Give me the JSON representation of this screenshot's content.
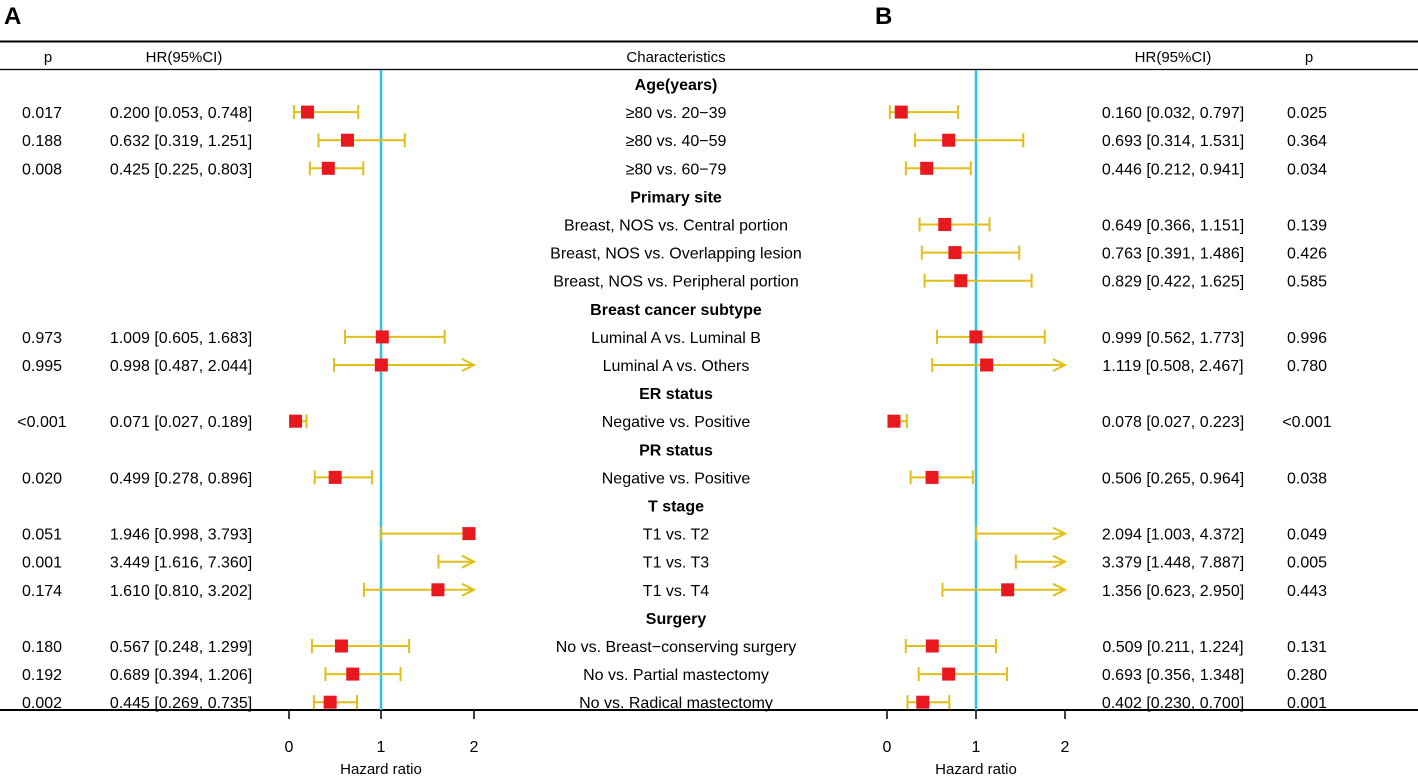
{
  "chart_data": {
    "type": "forest",
    "panels": [
      {
        "label": "A",
        "p_header": "p",
        "hr_header": "HR(95%CI)",
        "xlabel": "Hazard ratio",
        "xticks": [
          "0",
          "1",
          "2"
        ],
        "xlim": [
          0,
          2
        ],
        "reference": 1
      },
      {
        "label": "B",
        "p_header": "p",
        "hr_header": "HR(95%CI)",
        "xlabel": "Hazard ratio",
        "xticks": [
          "0",
          "1",
          "2"
        ],
        "xlim": [
          0,
          2
        ],
        "reference": 1
      }
    ],
    "characteristics_header": "Characteristics",
    "rows": [
      {
        "kind": "group",
        "label": "Age(years)"
      },
      {
        "kind": "item",
        "label": "≥80 vs. 20−39",
        "a": {
          "p": "0.017",
          "hr_text": "0.200 [0.053, 0.748]",
          "hr": 0.2,
          "lo": 0.053,
          "hi": 0.748
        },
        "b": {
          "p": "0.025",
          "hr_text": "0.160 [0.032, 0.797]",
          "hr": 0.16,
          "lo": 0.032,
          "hi": 0.797
        }
      },
      {
        "kind": "item",
        "label": "≥80 vs. 40−59",
        "a": {
          "p": "0.188",
          "hr_text": "0.632 [0.319, 1.251]",
          "hr": 0.632,
          "lo": 0.319,
          "hi": 1.251
        },
        "b": {
          "p": "0.364",
          "hr_text": "0.693 [0.314, 1.531]",
          "hr": 0.693,
          "lo": 0.314,
          "hi": 1.531
        }
      },
      {
        "kind": "item",
        "label": "≥80 vs. 60−79",
        "a": {
          "p": "0.008",
          "hr_text": "0.425 [0.225, 0.803]",
          "hr": 0.425,
          "lo": 0.225,
          "hi": 0.803
        },
        "b": {
          "p": "0.034",
          "hr_text": "0.446 [0.212, 0.941]",
          "hr": 0.446,
          "lo": 0.212,
          "hi": 0.941
        }
      },
      {
        "kind": "group",
        "label": "Primary site"
      },
      {
        "kind": "item",
        "label": "Breast, NOS vs. Central portion",
        "a": null,
        "b": {
          "p": "0.139",
          "hr_text": "0.649 [0.366, 1.151]",
          "hr": 0.649,
          "lo": 0.366,
          "hi": 1.151
        }
      },
      {
        "kind": "item",
        "label": "Breast, NOS vs. Overlapping lesion",
        "a": null,
        "b": {
          "p": "0.426",
          "hr_text": "0.763 [0.391, 1.486]",
          "hr": 0.763,
          "lo": 0.391,
          "hi": 1.486
        }
      },
      {
        "kind": "item",
        "label": "Breast, NOS vs. Peripheral portion",
        "a": null,
        "b": {
          "p": "0.585",
          "hr_text": "0.829 [0.422, 1.625]",
          "hr": 0.829,
          "lo": 0.422,
          "hi": 1.625
        }
      },
      {
        "kind": "group",
        "label": "Breast cancer subtype"
      },
      {
        "kind": "item",
        "label": "Luminal A vs. Luminal B",
        "a": {
          "p": "0.973",
          "hr_text": "1.009 [0.605, 1.683]",
          "hr": 1.009,
          "lo": 0.605,
          "hi": 1.683
        },
        "b": {
          "p": "0.996",
          "hr_text": "0.999 [0.562, 1.773]",
          "hr": 0.999,
          "lo": 0.562,
          "hi": 1.773
        }
      },
      {
        "kind": "item",
        "label": "Luminal A vs. Others",
        "a": {
          "p": "0.995",
          "hr_text": "0.998 [0.487, 2.044]",
          "hr": 0.998,
          "lo": 0.487,
          "hi": 2.044
        },
        "b": {
          "p": "0.780",
          "hr_text": "1.119 [0.508, 2.467]",
          "hr": 1.119,
          "lo": 0.508,
          "hi": 2.467
        }
      },
      {
        "kind": "group",
        "label": "ER status"
      },
      {
        "kind": "item",
        "label": "Negative vs. Positive",
        "a": {
          "p": "<0.001",
          "hr_text": "0.071 [0.027, 0.189]",
          "hr": 0.071,
          "lo": 0.027,
          "hi": 0.189
        },
        "b": {
          "p": "<0.001",
          "hr_text": "0.078 [0.027, 0.223]",
          "hr": 0.078,
          "lo": 0.027,
          "hi": 0.223
        }
      },
      {
        "kind": "group",
        "label": "PR status"
      },
      {
        "kind": "item",
        "label": "Negative vs. Positive",
        "a": {
          "p": "0.020",
          "hr_text": "0.499 [0.278, 0.896]",
          "hr": 0.499,
          "lo": 0.278,
          "hi": 0.896
        },
        "b": {
          "p": "0.038",
          "hr_text": "0.506 [0.265, 0.964]",
          "hr": 0.506,
          "lo": 0.265,
          "hi": 0.964
        }
      },
      {
        "kind": "group",
        "label": "T stage"
      },
      {
        "kind": "item",
        "label": "T1 vs. T2",
        "a": {
          "p": "0.051",
          "hr_text": "1.946 [0.998, 3.793]",
          "hr": 1.946,
          "lo": 0.998,
          "hi": 3.793
        },
        "b": {
          "p": "0.049",
          "hr_text": "2.094 [1.003, 4.372]",
          "hr": 2.094,
          "lo": 1.003,
          "hi": 4.372
        }
      },
      {
        "kind": "item",
        "label": "T1 vs. T3",
        "a": {
          "p": "0.001",
          "hr_text": "3.449 [1.616, 7.360]",
          "hr": 3.449,
          "lo": 1.616,
          "hi": 7.36
        },
        "b": {
          "p": "0.005",
          "hr_text": "3.379 [1.448, 7.887]",
          "hr": 3.379,
          "lo": 1.448,
          "hi": 7.887
        }
      },
      {
        "kind": "item",
        "label": "T1 vs. T4",
        "a": {
          "p": "0.174",
          "hr_text": "1.610 [0.810, 3.202]",
          "hr": 1.61,
          "lo": 0.81,
          "hi": 3.202
        },
        "b": {
          "p": "0.443",
          "hr_text": "1.356 [0.623, 2.950]",
          "hr": 1.356,
          "lo": 0.623,
          "hi": 2.95
        }
      },
      {
        "kind": "group",
        "label": "Surgery"
      },
      {
        "kind": "item",
        "label": "No vs. Breast−conserving surgery",
        "a": {
          "p": "0.180",
          "hr_text": "0.567 [0.248, 1.299]",
          "hr": 0.567,
          "lo": 0.248,
          "hi": 1.299
        },
        "b": {
          "p": "0.131",
          "hr_text": "0.509 [0.211, 1.224]",
          "hr": 0.509,
          "lo": 0.211,
          "hi": 1.224
        }
      },
      {
        "kind": "item",
        "label": "No vs. Partial mastectomy",
        "a": {
          "p": "0.192",
          "hr_text": "0.689 [0.394, 1.206]",
          "hr": 0.689,
          "lo": 0.394,
          "hi": 1.206
        },
        "b": {
          "p": "0.280",
          "hr_text": "0.693 [0.356, 1.348]",
          "hr": 0.693,
          "lo": 0.356,
          "hi": 1.348
        }
      },
      {
        "kind": "item",
        "label": "No vs. Radical mastectomy",
        "a": {
          "p": "0.002",
          "hr_text": "0.445 [0.269, 0.735]",
          "hr": 0.445,
          "lo": 0.269,
          "hi": 0.735
        },
        "b": {
          "p": "0.001",
          "hr_text": "0.402 [0.230, 0.700]",
          "hr": 0.402,
          "lo": 0.23,
          "hi": 0.7
        }
      }
    ]
  },
  "colors": {
    "marker": "#e8191e",
    "ci": "#e2be18",
    "reference": "#2ec3e8",
    "rule": "#000000"
  }
}
